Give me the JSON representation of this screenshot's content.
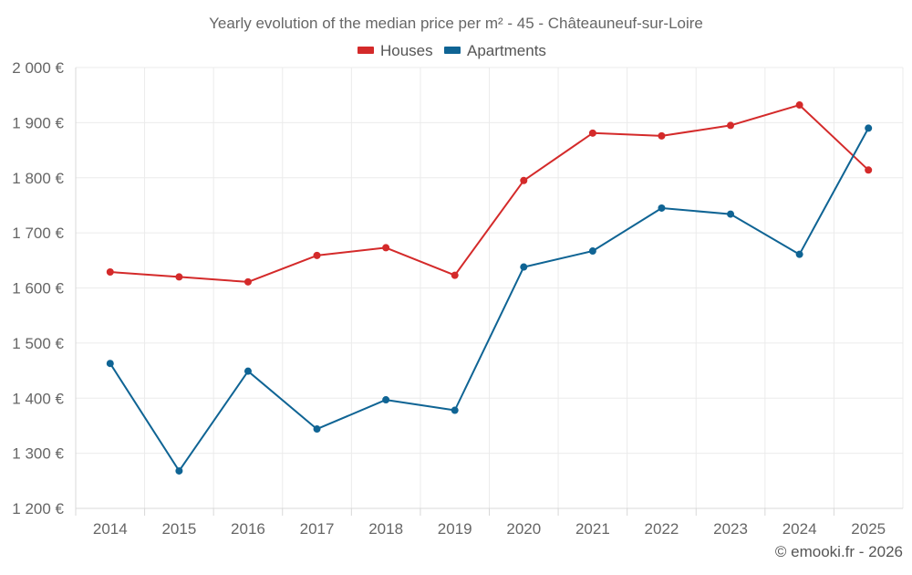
{
  "chart_data": {
    "type": "line",
    "title": "Yearly evolution of the median price per m² - 45 - Châteauneuf-sur-Loire",
    "categories": [
      "2014",
      "2015",
      "2016",
      "2017",
      "2018",
      "2019",
      "2020",
      "2021",
      "2022",
      "2023",
      "2024",
      "2025"
    ],
    "series": [
      {
        "name": "Houses",
        "color": "#d42a2a",
        "values": [
          1629,
          1620,
          1611,
          1659,
          1673,
          1623,
          1795,
          1881,
          1876,
          1895,
          1932,
          1814
        ]
      },
      {
        "name": "Apartments",
        "color": "#0f6494",
        "values": [
          1463,
          1268,
          1449,
          1344,
          1397,
          1378,
          1638,
          1667,
          1745,
          1734,
          1661,
          1890
        ]
      }
    ],
    "ylim": [
      1200,
      2000
    ],
    "yticks": [
      1200,
      1300,
      1400,
      1500,
      1600,
      1700,
      1800,
      1900,
      2000
    ],
    "ytick_labels": [
      "1 200 €",
      "1 300 €",
      "1 400 €",
      "1 500 €",
      "1 600 €",
      "1 700 €",
      "1 800 €",
      "1 900 €",
      "2 000 €"
    ],
    "xlabel": "",
    "ylabel": "",
    "grid": true,
    "legend_position": "top-center"
  },
  "credit": "© emooki.fr - 2026"
}
